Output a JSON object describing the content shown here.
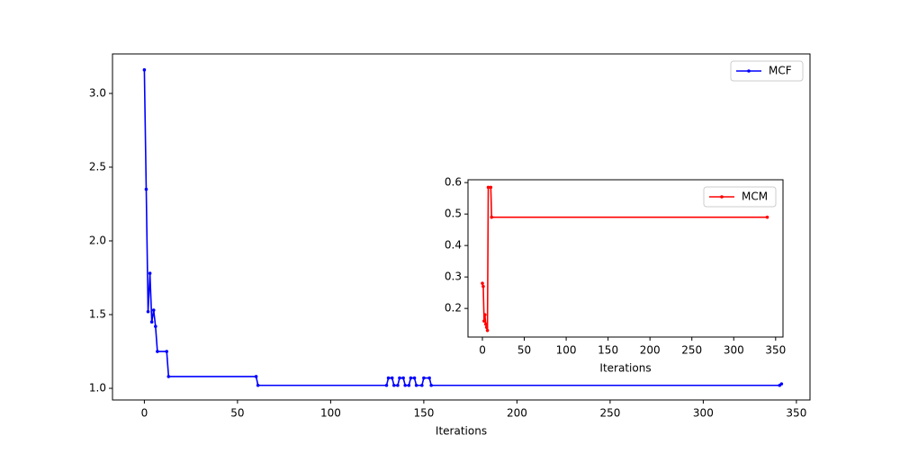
{
  "chart_data": [
    {
      "type": "line",
      "x_label": "Iterations",
      "legend": "upper right",
      "x": [
        0,
        1,
        2,
        3,
        4,
        5,
        6,
        7,
        12,
        13,
        60,
        61,
        130,
        131,
        133,
        134,
        136,
        137,
        139,
        140,
        142,
        143,
        145,
        146,
        149,
        150,
        153,
        154,
        341,
        342
      ],
      "series": [
        {
          "name": "MCF",
          "color": "#0000ff",
          "values": [
            3.16,
            2.35,
            1.52,
            1.78,
            1.45,
            1.53,
            1.42,
            1.25,
            1.25,
            1.08,
            1.08,
            1.02,
            1.02,
            1.07,
            1.07,
            1.02,
            1.02,
            1.07,
            1.07,
            1.02,
            1.02,
            1.07,
            1.07,
            1.02,
            1.02,
            1.07,
            1.07,
            1.02,
            1.02,
            1.03
          ]
        }
      ],
      "xlim": [
        -17.1,
        357.3
      ],
      "ylim": [
        0.921,
        3.268
      ],
      "xticks": [
        0,
        50,
        100,
        150,
        200,
        250,
        300,
        350
      ],
      "yticks": [
        {
          "value": 1.0,
          "label": "1.0"
        },
        1.5,
        {
          "value": 2.0,
          "label": "2.0"
        },
        2.5,
        {
          "value": 3.0,
          "label": "3.0"
        }
      ]
    },
    {
      "type": "line",
      "x_label": "Iterations",
      "legend": "upper right",
      "x": [
        0,
        1,
        2,
        3,
        4,
        5,
        6,
        7,
        10,
        11,
        340
      ],
      "series": [
        {
          "name": "MCM",
          "color": "#ff0000",
          "values": [
            0.28,
            0.27,
            0.16,
            0.18,
            0.15,
            0.14,
            0.13,
            0.585,
            0.585,
            0.49,
            0.49
          ]
        }
      ],
      "xlim": [
        -17.2,
        358.8
      ],
      "ylim": [
        0.109,
        0.609
      ],
      "xticks": [
        0,
        50,
        100,
        150,
        200,
        250,
        300,
        350
      ],
      "yticks": [
        0.2,
        0.3,
        0.4,
        0.5,
        0.6
      ]
    }
  ]
}
